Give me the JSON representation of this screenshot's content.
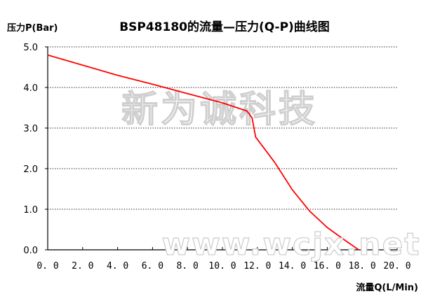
{
  "chart_data": {
    "type": "line",
    "title": "BSP48180的流量—压力(Q-P)曲线图",
    "ylabel": "压力P(Bar)",
    "xlabel": "流量Q(L/Min)",
    "xlim": [
      0,
      20
    ],
    "ylim": [
      0,
      5
    ],
    "x_ticks": [
      "0.0",
      "2.0",
      "4.0",
      "6.0",
      "8.0",
      "10.0",
      "12.0",
      "14.0",
      "16.0",
      "18.0",
      "20.0"
    ],
    "y_ticks": [
      "0.0",
      "1.0",
      "2.0",
      "3.0",
      "4.0",
      "5.0"
    ],
    "grid": "horizontal dotted",
    "series": [
      {
        "color": "#ff0000",
        "points": [
          [
            0.0,
            4.8
          ],
          [
            2.0,
            4.55
          ],
          [
            4.0,
            4.3
          ],
          [
            6.0,
            4.08
          ],
          [
            8.0,
            3.85
          ],
          [
            10.0,
            3.62
          ],
          [
            11.4,
            3.42
          ],
          [
            11.7,
            3.25
          ],
          [
            11.9,
            2.78
          ],
          [
            13.0,
            2.15
          ],
          [
            14.0,
            1.48
          ],
          [
            15.0,
            0.95
          ],
          [
            16.0,
            0.55
          ],
          [
            17.0,
            0.24
          ],
          [
            17.8,
            0.0
          ]
        ]
      }
    ]
  },
  "watermark": {
    "cn_text": "新为诚科技",
    "url_text": "www.wcjx.net"
  }
}
